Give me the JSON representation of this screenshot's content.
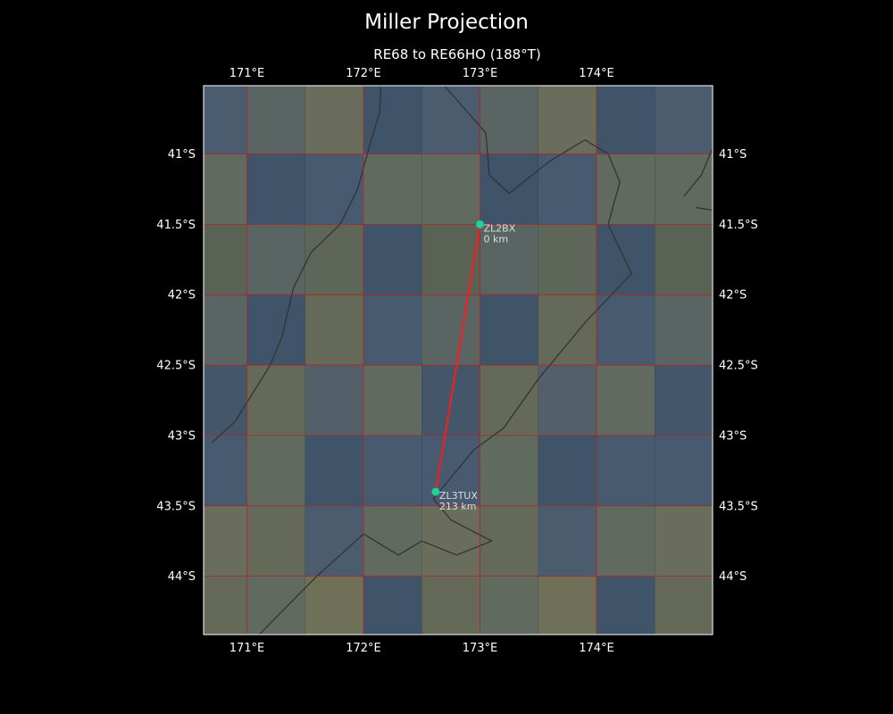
{
  "header": {
    "title": "Miller Projection",
    "subtitle": "RE68 to RE66HO (188°T)"
  },
  "map": {
    "projection": "Miller",
    "lon_range": [
      170.62,
      174.98
    ],
    "lat_range": [
      -44.42,
      -40.52
    ],
    "x_ticks": [
      {
        "value": 171,
        "label": "171°E"
      },
      {
        "value": 172,
        "label": "172°E"
      },
      {
        "value": 173,
        "label": "173°E"
      },
      {
        "value": 174,
        "label": "174°E"
      }
    ],
    "y_ticks": [
      {
        "value": -41,
        "label": "41°S"
      },
      {
        "value": -41.5,
        "label": "41.5°S"
      },
      {
        "value": -42,
        "label": "42°S"
      },
      {
        "value": -42.5,
        "label": "42.5°S"
      },
      {
        "value": -43,
        "label": "43°S"
      },
      {
        "value": -43.5,
        "label": "43.5°S"
      },
      {
        "value": -44,
        "label": "44°S"
      }
    ],
    "grid_color": "#b22222",
    "path_color": "#ff1a1a",
    "marker_color": "#1fd19a",
    "coast_color": "#333333"
  },
  "stations": [
    {
      "name": "ZL2BX",
      "distance": "0 km",
      "lon": 173.0,
      "lat": -41.5
    },
    {
      "name": "ZL3TUX",
      "distance": "213 km",
      "lon": 172.62,
      "lat": -43.4
    }
  ],
  "path": {
    "from": "RE68",
    "to": "RE66HO",
    "bearing": "188°T"
  }
}
